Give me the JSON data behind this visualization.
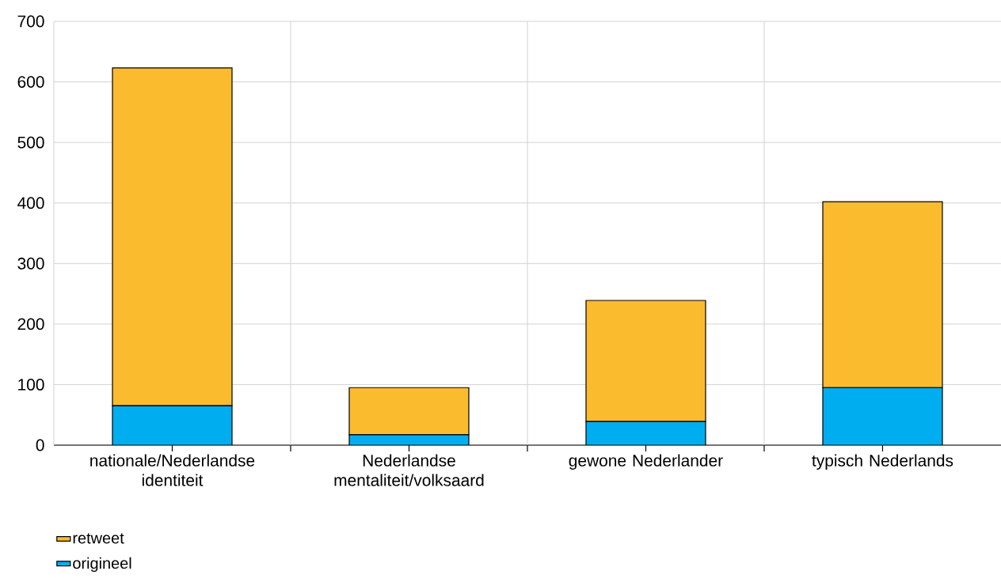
{
  "chart_data": {
    "type": "bar",
    "stacked": true,
    "categories": [
      "nationale/Nederlandse identiteit",
      "Nederlandse mentaliteit/volksaard",
      "gewone Nederlander",
      "typisch Nederlands"
    ],
    "series": [
      {
        "name": "origineel",
        "color": "#00aeef",
        "values": [
          65,
          17,
          39,
          95
        ]
      },
      {
        "name": "retweet",
        "color": "#fbbb2f",
        "values": [
          558,
          78,
          200,
          307
        ]
      }
    ],
    "ylim": [
      0,
      700
    ],
    "yticks": [
      0,
      100,
      200,
      300,
      400,
      500,
      600,
      700
    ],
    "grid": true,
    "legend": "bottom left"
  }
}
